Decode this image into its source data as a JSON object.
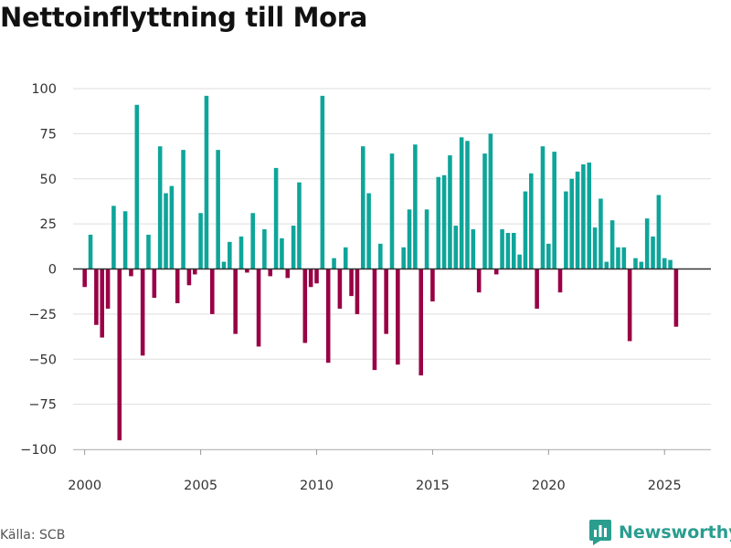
{
  "chart_data": {
    "type": "bar",
    "title": "Nettoinflyttning till Mora",
    "xlabel": "",
    "ylabel": "",
    "ylim": [
      -100,
      100
    ],
    "xlim": [
      1999.5,
      2027.0
    ],
    "yticks": [
      100,
      75,
      50,
      25,
      0,
      -25,
      -50,
      -75,
      -100
    ],
    "ytick_labels": [
      "100",
      "75",
      "50",
      "25",
      "0",
      "−25",
      "−50",
      "−75",
      "−100"
    ],
    "xticks": [
      2000,
      2005,
      2010,
      2015,
      2020,
      2025
    ],
    "xtick_labels": [
      "2000",
      "2005",
      "2010",
      "2015",
      "2020",
      "2025"
    ],
    "positive_color": "#0ea59a",
    "negative_color": "#990045",
    "series": [
      {
        "name": "Nettoinflyttning",
        "x": [
          2000.0,
          2000.25,
          2000.5,
          2000.75,
          2001.0,
          2001.25,
          2001.5,
          2001.75,
          2002.0,
          2002.25,
          2002.5,
          2002.75,
          2003.0,
          2003.25,
          2003.5,
          2003.75,
          2004.0,
          2004.25,
          2004.5,
          2004.75,
          2005.0,
          2005.25,
          2005.5,
          2005.75,
          2006.0,
          2006.25,
          2006.5,
          2006.75,
          2007.0,
          2007.25,
          2007.5,
          2007.75,
          2008.0,
          2008.25,
          2008.5,
          2008.75,
          2009.0,
          2009.25,
          2009.5,
          2009.75,
          2010.0,
          2010.25,
          2010.5,
          2010.75,
          2011.0,
          2011.25,
          2011.5,
          2011.75,
          2012.0,
          2012.25,
          2012.5,
          2012.75,
          2013.0,
          2013.25,
          2013.5,
          2013.75,
          2014.0,
          2014.25,
          2014.5,
          2014.75,
          2015.0,
          2015.25,
          2015.5,
          2015.75,
          2016.0,
          2016.25,
          2016.5,
          2016.75,
          2017.0,
          2017.25,
          2017.5,
          2017.75,
          2018.0,
          2018.25,
          2018.5,
          2018.75,
          2019.0,
          2019.25,
          2019.5,
          2019.75,
          2020.0,
          2020.25,
          2020.5,
          2020.75,
          2021.0,
          2021.25,
          2021.5,
          2021.75,
          2022.0,
          2022.25,
          2022.5,
          2022.75,
          2023.0,
          2023.25,
          2023.5,
          2023.75,
          2024.0,
          2024.25,
          2024.5,
          2024.75,
          2025.0,
          2025.25,
          2025.5,
          2025.75
        ],
        "values": [
          -10,
          19,
          -31,
          -38,
          -22,
          35,
          -95,
          32,
          -4,
          91,
          -48,
          19,
          -16,
          68,
          42,
          46,
          -19,
          66,
          -9,
          -3,
          31,
          96,
          -25,
          66,
          4,
          15,
          -36,
          18,
          -2,
          31,
          -43,
          22,
          -4,
          56,
          17,
          -5,
          24,
          48,
          -41,
          -10,
          -8,
          96,
          -52,
          6,
          -22,
          12,
          -15,
          -25,
          68,
          42,
          -56,
          14,
          -36,
          64,
          -53,
          12,
          33,
          69,
          -59,
          33,
          -18,
          51,
          52,
          63,
          24,
          73,
          71,
          22,
          -13,
          64,
          75,
          -3,
          22,
          20,
          20,
          8,
          43,
          53,
          -22,
          68,
          14,
          65,
          -13,
          43,
          50,
          54,
          58,
          59,
          23,
          39,
          4,
          27,
          12,
          12,
          -40,
          6,
          4,
          28,
          18,
          41,
          6,
          5,
          -32,
          0
        ]
      }
    ],
    "source": "Källa: SCB",
    "brand": "Newsworthy"
  }
}
